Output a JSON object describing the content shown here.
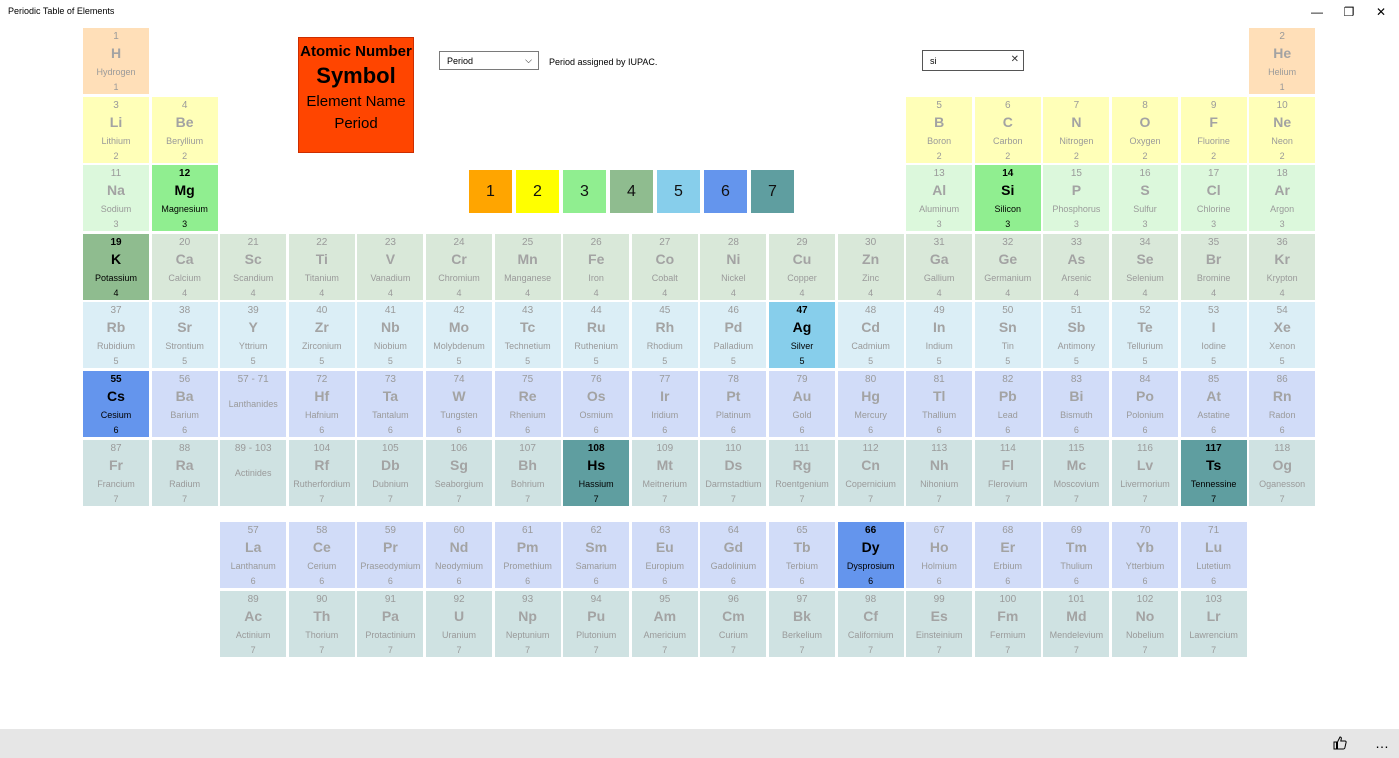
{
  "window": {
    "title": "Periodic Table of Elements",
    "minimize_glyph": "—",
    "maximize_glyph": "❐",
    "close_glyph": "✕"
  },
  "legend": {
    "atomic_number": "Atomic Number",
    "symbol": "Symbol",
    "element_name": "Element Name",
    "period": "Period"
  },
  "view_selector": {
    "value": "Period",
    "chevron": "⌵",
    "description": "Period assigned by IUPAC."
  },
  "search": {
    "value": "si",
    "clear_glyph": "✕"
  },
  "period_buttons": [
    {
      "label": "1",
      "color": "#ffa500"
    },
    {
      "label": "2",
      "color": "#ffff00"
    },
    {
      "label": "3",
      "color": "#90ee90"
    },
    {
      "label": "4",
      "color": "#8fbc8f"
    },
    {
      "label": "5",
      "color": "#87ceeb"
    },
    {
      "label": "6",
      "color": "#6495ed"
    },
    {
      "label": "7",
      "color": "#5f9ea0"
    }
  ],
  "period_colors": {
    "1": {
      "dim": "#ffdfb8",
      "full": "#ffa500"
    },
    "2": {
      "dim": "#ffffb8",
      "full": "#ffff66"
    },
    "3": {
      "dim": "#dcf8dc",
      "full": "#90ee90"
    },
    "4": {
      "dim": "#d9e8d9",
      "full": "#8fbc8f"
    },
    "5": {
      "dim": "#dbeef6",
      "full": "#87ceeb"
    },
    "6": {
      "dim": "#d1dcf8",
      "full": "#6495ed"
    },
    "7": {
      "dim": "#cfe2e2",
      "full": "#5f9ea0"
    }
  },
  "elements": [
    {
      "n": "1",
      "s": "H",
      "name": "Hydrogen",
      "p": "1",
      "g": 1,
      "r": 1
    },
    {
      "n": "2",
      "s": "He",
      "name": "Helium",
      "p": "1",
      "g": 18,
      "r": 1
    },
    {
      "n": "3",
      "s": "Li",
      "name": "Lithium",
      "p": "2",
      "g": 1,
      "r": 2
    },
    {
      "n": "4",
      "s": "Be",
      "name": "Beryllium",
      "p": "2",
      "g": 2,
      "r": 2
    },
    {
      "n": "5",
      "s": "B",
      "name": "Boron",
      "p": "2",
      "g": 13,
      "r": 2
    },
    {
      "n": "6",
      "s": "C",
      "name": "Carbon",
      "p": "2",
      "g": 14,
      "r": 2
    },
    {
      "n": "7",
      "s": "N",
      "name": "Nitrogen",
      "p": "2",
      "g": 15,
      "r": 2
    },
    {
      "n": "8",
      "s": "O",
      "name": "Oxygen",
      "p": "2",
      "g": 16,
      "r": 2
    },
    {
      "n": "9",
      "s": "F",
      "name": "Fluorine",
      "p": "2",
      "g": 17,
      "r": 2
    },
    {
      "n": "10",
      "s": "Ne",
      "name": "Neon",
      "p": "2",
      "g": 18,
      "r": 2
    },
    {
      "n": "11",
      "s": "Na",
      "name": "Sodium",
      "p": "3",
      "g": 1,
      "r": 3
    },
    {
      "n": "12",
      "s": "Mg",
      "name": "Magnesium",
      "p": "3",
      "g": 2,
      "r": 3,
      "hl": true
    },
    {
      "n": "13",
      "s": "Al",
      "name": "Aluminum",
      "p": "3",
      "g": 13,
      "r": 3
    },
    {
      "n": "14",
      "s": "Si",
      "name": "Silicon",
      "p": "3",
      "g": 14,
      "r": 3,
      "hl": true
    },
    {
      "n": "15",
      "s": "P",
      "name": "Phosphorus",
      "p": "3",
      "g": 15,
      "r": 3
    },
    {
      "n": "16",
      "s": "S",
      "name": "Sulfur",
      "p": "3",
      "g": 16,
      "r": 3
    },
    {
      "n": "17",
      "s": "Cl",
      "name": "Chlorine",
      "p": "3",
      "g": 17,
      "r": 3
    },
    {
      "n": "18",
      "s": "Ar",
      "name": "Argon",
      "p": "3",
      "g": 18,
      "r": 3
    },
    {
      "n": "19",
      "s": "K",
      "name": "Potassium",
      "p": "4",
      "g": 1,
      "r": 4,
      "hl": true
    },
    {
      "n": "20",
      "s": "Ca",
      "name": "Calcium",
      "p": "4",
      "g": 2,
      "r": 4
    },
    {
      "n": "21",
      "s": "Sc",
      "name": "Scandium",
      "p": "4",
      "g": 3,
      "r": 4
    },
    {
      "n": "22",
      "s": "Ti",
      "name": "Titanium",
      "p": "4",
      "g": 4,
      "r": 4
    },
    {
      "n": "23",
      "s": "V",
      "name": "Vanadium",
      "p": "4",
      "g": 5,
      "r": 4
    },
    {
      "n": "24",
      "s": "Cr",
      "name": "Chromium",
      "p": "4",
      "g": 6,
      "r": 4
    },
    {
      "n": "25",
      "s": "Mn",
      "name": "Manganese",
      "p": "4",
      "g": 7,
      "r": 4
    },
    {
      "n": "26",
      "s": "Fe",
      "name": "Iron",
      "p": "4",
      "g": 8,
      "r": 4
    },
    {
      "n": "27",
      "s": "Co",
      "name": "Cobalt",
      "p": "4",
      "g": 9,
      "r": 4
    },
    {
      "n": "28",
      "s": "Ni",
      "name": "Nickel",
      "p": "4",
      "g": 10,
      "r": 4
    },
    {
      "n": "29",
      "s": "Cu",
      "name": "Copper",
      "p": "4",
      "g": 11,
      "r": 4
    },
    {
      "n": "30",
      "s": "Zn",
      "name": "Zinc",
      "p": "4",
      "g": 12,
      "r": 4
    },
    {
      "n": "31",
      "s": "Ga",
      "name": "Gallium",
      "p": "4",
      "g": 13,
      "r": 4
    },
    {
      "n": "32",
      "s": "Ge",
      "name": "Germanium",
      "p": "4",
      "g": 14,
      "r": 4
    },
    {
      "n": "33",
      "s": "As",
      "name": "Arsenic",
      "p": "4",
      "g": 15,
      "r": 4
    },
    {
      "n": "34",
      "s": "Se",
      "name": "Selenium",
      "p": "4",
      "g": 16,
      "r": 4
    },
    {
      "n": "35",
      "s": "Br",
      "name": "Bromine",
      "p": "4",
      "g": 17,
      "r": 4
    },
    {
      "n": "36",
      "s": "Kr",
      "name": "Krypton",
      "p": "4",
      "g": 18,
      "r": 4
    },
    {
      "n": "37",
      "s": "Rb",
      "name": "Rubidium",
      "p": "5",
      "g": 1,
      "r": 5
    },
    {
      "n": "38",
      "s": "Sr",
      "name": "Strontium",
      "p": "5",
      "g": 2,
      "r": 5
    },
    {
      "n": "39",
      "s": "Y",
      "name": "Yttrium",
      "p": "5",
      "g": 3,
      "r": 5
    },
    {
      "n": "40",
      "s": "Zr",
      "name": "Zirconium",
      "p": "5",
      "g": 4,
      "r": 5
    },
    {
      "n": "41",
      "s": "Nb",
      "name": "Niobium",
      "p": "5",
      "g": 5,
      "r": 5
    },
    {
      "n": "42",
      "s": "Mo",
      "name": "Molybdenum",
      "p": "5",
      "g": 6,
      "r": 5
    },
    {
      "n": "43",
      "s": "Tc",
      "name": "Technetium",
      "p": "5",
      "g": 7,
      "r": 5
    },
    {
      "n": "44",
      "s": "Ru",
      "name": "Ruthenium",
      "p": "5",
      "g": 8,
      "r": 5
    },
    {
      "n": "45",
      "s": "Rh",
      "name": "Rhodium",
      "p": "5",
      "g": 9,
      "r": 5
    },
    {
      "n": "46",
      "s": "Pd",
      "name": "Palladium",
      "p": "5",
      "g": 10,
      "r": 5
    },
    {
      "n": "47",
      "s": "Ag",
      "name": "Silver",
      "p": "5",
      "g": 11,
      "r": 5,
      "hl": true
    },
    {
      "n": "48",
      "s": "Cd",
      "name": "Cadmium",
      "p": "5",
      "g": 12,
      "r": 5
    },
    {
      "n": "49",
      "s": "In",
      "name": "Indium",
      "p": "5",
      "g": 13,
      "r": 5
    },
    {
      "n": "50",
      "s": "Sn",
      "name": "Tin",
      "p": "5",
      "g": 14,
      "r": 5
    },
    {
      "n": "51",
      "s": "Sb",
      "name": "Antimony",
      "p": "5",
      "g": 15,
      "r": 5
    },
    {
      "n": "52",
      "s": "Te",
      "name": "Tellurium",
      "p": "5",
      "g": 16,
      "r": 5
    },
    {
      "n": "53",
      "s": "I",
      "name": "Iodine",
      "p": "5",
      "g": 17,
      "r": 5
    },
    {
      "n": "54",
      "s": "Xe",
      "name": "Xenon",
      "p": "5",
      "g": 18,
      "r": 5
    },
    {
      "n": "55",
      "s": "Cs",
      "name": "Cesium",
      "p": "6",
      "g": 1,
      "r": 6,
      "hl": true
    },
    {
      "n": "56",
      "s": "Ba",
      "name": "Barium",
      "p": "6",
      "g": 2,
      "r": 6
    },
    {
      "n": "57 - 71",
      "s": "",
      "name": "Lanthanides",
      "p": "",
      "g": 3,
      "r": 6,
      "ph": true
    },
    {
      "n": "72",
      "s": "Hf",
      "name": "Hafnium",
      "p": "6",
      "g": 4,
      "r": 6
    },
    {
      "n": "73",
      "s": "Ta",
      "name": "Tantalum",
      "p": "6",
      "g": 5,
      "r": 6
    },
    {
      "n": "74",
      "s": "W",
      "name": "Tungsten",
      "p": "6",
      "g": 6,
      "r": 6
    },
    {
      "n": "75",
      "s": "Re",
      "name": "Rhenium",
      "p": "6",
      "g": 7,
      "r": 6
    },
    {
      "n": "76",
      "s": "Os",
      "name": "Osmium",
      "p": "6",
      "g": 8,
      "r": 6
    },
    {
      "n": "77",
      "s": "Ir",
      "name": "Iridium",
      "p": "6",
      "g": 9,
      "r": 6
    },
    {
      "n": "78",
      "s": "Pt",
      "name": "Platinum",
      "p": "6",
      "g": 10,
      "r": 6
    },
    {
      "n": "79",
      "s": "Au",
      "name": "Gold",
      "p": "6",
      "g": 11,
      "r": 6
    },
    {
      "n": "80",
      "s": "Hg",
      "name": "Mercury",
      "p": "6",
      "g": 12,
      "r": 6
    },
    {
      "n": "81",
      "s": "Tl",
      "name": "Thallium",
      "p": "6",
      "g": 13,
      "r": 6
    },
    {
      "n": "82",
      "s": "Pb",
      "name": "Lead",
      "p": "6",
      "g": 14,
      "r": 6
    },
    {
      "n": "83",
      "s": "Bi",
      "name": "Bismuth",
      "p": "6",
      "g": 15,
      "r": 6
    },
    {
      "n": "84",
      "s": "Po",
      "name": "Polonium",
      "p": "6",
      "g": 16,
      "r": 6
    },
    {
      "n": "85",
      "s": "At",
      "name": "Astatine",
      "p": "6",
      "g": 17,
      "r": 6
    },
    {
      "n": "86",
      "s": "Rn",
      "name": "Radon",
      "p": "6",
      "g": 18,
      "r": 6
    },
    {
      "n": "87",
      "s": "Fr",
      "name": "Francium",
      "p": "7",
      "g": 1,
      "r": 7
    },
    {
      "n": "88",
      "s": "Ra",
      "name": "Radium",
      "p": "7",
      "g": 2,
      "r": 7
    },
    {
      "n": "89 - 103",
      "s": "",
      "name": "Actinides",
      "p": "",
      "g": 3,
      "r": 7,
      "ph": true
    },
    {
      "n": "104",
      "s": "Rf",
      "name": "Rutherfordium",
      "p": "7",
      "g": 4,
      "r": 7
    },
    {
      "n": "105",
      "s": "Db",
      "name": "Dubnium",
      "p": "7",
      "g": 5,
      "r": 7
    },
    {
      "n": "106",
      "s": "Sg",
      "name": "Seaborgium",
      "p": "7",
      "g": 6,
      "r": 7
    },
    {
      "n": "107",
      "s": "Bh",
      "name": "Bohrium",
      "p": "7",
      "g": 7,
      "r": 7
    },
    {
      "n": "108",
      "s": "Hs",
      "name": "Hassium",
      "p": "7",
      "g": 8,
      "r": 7,
      "hl": true
    },
    {
      "n": "109",
      "s": "Mt",
      "name": "Meitnerium",
      "p": "7",
      "g": 9,
      "r": 7
    },
    {
      "n": "110",
      "s": "Ds",
      "name": "Darmstadtium",
      "p": "7",
      "g": 10,
      "r": 7
    },
    {
      "n": "111",
      "s": "Rg",
      "name": "Roentgenium",
      "p": "7",
      "g": 11,
      "r": 7
    },
    {
      "n": "112",
      "s": "Cn",
      "name": "Copernicium",
      "p": "7",
      "g": 12,
      "r": 7
    },
    {
      "n": "113",
      "s": "Nh",
      "name": "Nihonium",
      "p": "7",
      "g": 13,
      "r": 7
    },
    {
      "n": "114",
      "s": "Fl",
      "name": "Flerovium",
      "p": "7",
      "g": 14,
      "r": 7
    },
    {
      "n": "115",
      "s": "Mc",
      "name": "Moscovium",
      "p": "7",
      "g": 15,
      "r": 7
    },
    {
      "n": "116",
      "s": "Lv",
      "name": "Livermorium",
      "p": "7",
      "g": 16,
      "r": 7
    },
    {
      "n": "117",
      "s": "Ts",
      "name": "Tennessine",
      "p": "7",
      "g": 17,
      "r": 7,
      "hl": true
    },
    {
      "n": "118",
      "s": "Og",
      "name": "Oganesson",
      "p": "7",
      "g": 18,
      "r": 7
    },
    {
      "n": "57",
      "s": "La",
      "name": "Lanthanum",
      "p": "6",
      "g": 3,
      "r": 8
    },
    {
      "n": "58",
      "s": "Ce",
      "name": "Cerium",
      "p": "6",
      "g": 4,
      "r": 8
    },
    {
      "n": "59",
      "s": "Pr",
      "name": "Praseodymium",
      "p": "6",
      "g": 5,
      "r": 8
    },
    {
      "n": "60",
      "s": "Nd",
      "name": "Neodymium",
      "p": "6",
      "g": 6,
      "r": 8
    },
    {
      "n": "61",
      "s": "Pm",
      "name": "Promethium",
      "p": "6",
      "g": 7,
      "r": 8
    },
    {
      "n": "62",
      "s": "Sm",
      "name": "Samarium",
      "p": "6",
      "g": 8,
      "r": 8
    },
    {
      "n": "63",
      "s": "Eu",
      "name": "Europium",
      "p": "6",
      "g": 9,
      "r": 8
    },
    {
      "n": "64",
      "s": "Gd",
      "name": "Gadolinium",
      "p": "6",
      "g": 10,
      "r": 8
    },
    {
      "n": "65",
      "s": "Tb",
      "name": "Terbium",
      "p": "6",
      "g": 11,
      "r": 8
    },
    {
      "n": "66",
      "s": "Dy",
      "name": "Dysprosium",
      "p": "6",
      "g": 12,
      "r": 8,
      "hl": true
    },
    {
      "n": "67",
      "s": "Ho",
      "name": "Holmium",
      "p": "6",
      "g": 13,
      "r": 8
    },
    {
      "n": "68",
      "s": "Er",
      "name": "Erbium",
      "p": "6",
      "g": 14,
      "r": 8
    },
    {
      "n": "69",
      "s": "Tm",
      "name": "Thulium",
      "p": "6",
      "g": 15,
      "r": 8
    },
    {
      "n": "70",
      "s": "Yb",
      "name": "Ytterbium",
      "p": "6",
      "g": 16,
      "r": 8
    },
    {
      "n": "71",
      "s": "Lu",
      "name": "Lutetium",
      "p": "6",
      "g": 17,
      "r": 8
    },
    {
      "n": "89",
      "s": "Ac",
      "name": "Actinium",
      "p": "7",
      "g": 3,
      "r": 9
    },
    {
      "n": "90",
      "s": "Th",
      "name": "Thorium",
      "p": "7",
      "g": 4,
      "r": 9
    },
    {
      "n": "91",
      "s": "Pa",
      "name": "Protactinium",
      "p": "7",
      "g": 5,
      "r": 9
    },
    {
      "n": "92",
      "s": "U",
      "name": "Uranium",
      "p": "7",
      "g": 6,
      "r": 9
    },
    {
      "n": "93",
      "s": "Np",
      "name": "Neptunium",
      "p": "7",
      "g": 7,
      "r": 9
    },
    {
      "n": "94",
      "s": "Pu",
      "name": "Plutonium",
      "p": "7",
      "g": 8,
      "r": 9
    },
    {
      "n": "95",
      "s": "Am",
      "name": "Americium",
      "p": "7",
      "g": 9,
      "r": 9
    },
    {
      "n": "96",
      "s": "Cm",
      "name": "Curium",
      "p": "7",
      "g": 10,
      "r": 9
    },
    {
      "n": "97",
      "s": "Bk",
      "name": "Berkelium",
      "p": "7",
      "g": 11,
      "r": 9
    },
    {
      "n": "98",
      "s": "Cf",
      "name": "Californium",
      "p": "7",
      "g": 12,
      "r": 9
    },
    {
      "n": "99",
      "s": "Es",
      "name": "Einsteinium",
      "p": "7",
      "g": 13,
      "r": 9
    },
    {
      "n": "100",
      "s": "Fm",
      "name": "Fermium",
      "p": "7",
      "g": 14,
      "r": 9
    },
    {
      "n": "101",
      "s": "Md",
      "name": "Mendelevium",
      "p": "7",
      "g": 15,
      "r": 9
    },
    {
      "n": "102",
      "s": "No",
      "name": "Nobelium",
      "p": "7",
      "g": 16,
      "r": 9
    },
    {
      "n": "103",
      "s": "Lr",
      "name": "Lawrencium",
      "p": "7",
      "g": 17,
      "r": 9
    }
  ],
  "bottom_bar": {
    "more_glyph": "…"
  }
}
